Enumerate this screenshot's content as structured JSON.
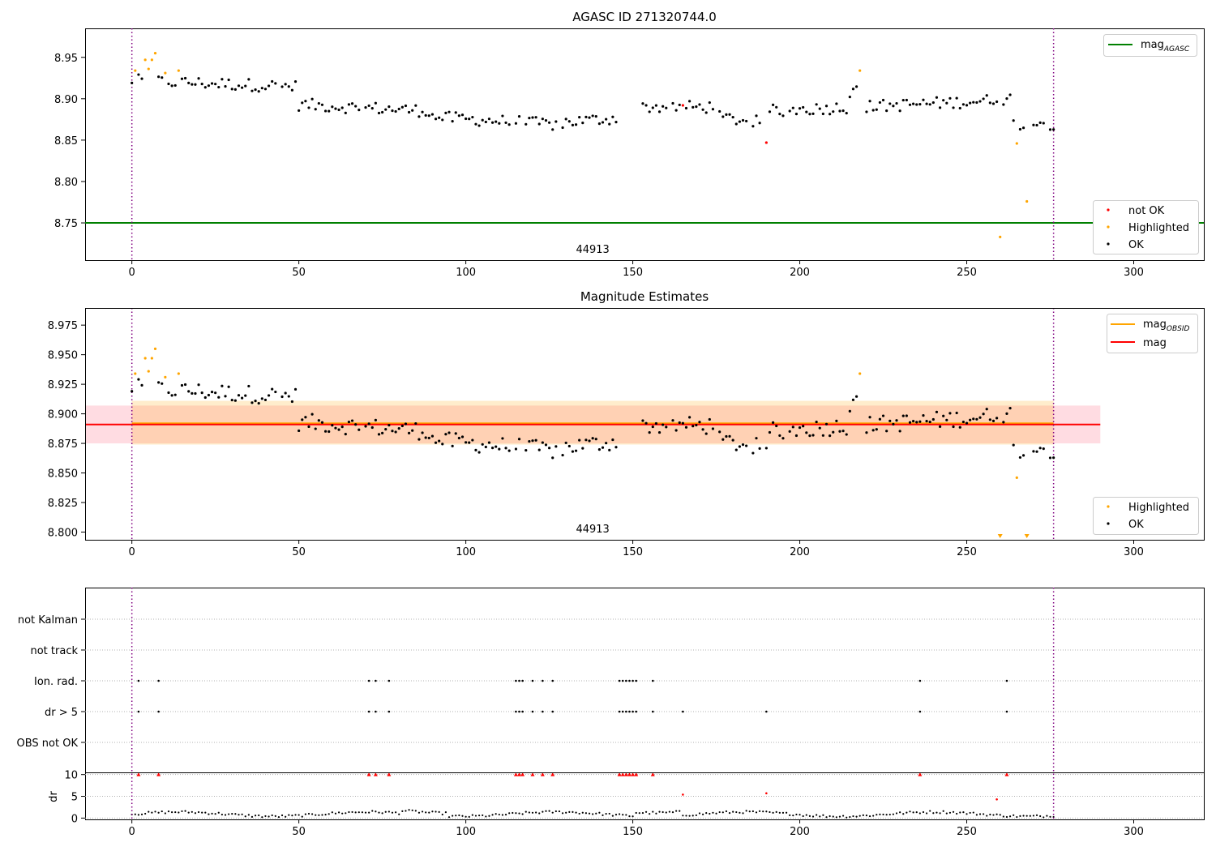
{
  "chart_data": [
    {
      "type": "scatter",
      "title": "AGASC ID 271320744.0",
      "xlim": [
        -14,
        321
      ],
      "ylim": [
        8.705,
        8.985
      ],
      "xticks": [
        0,
        50,
        100,
        150,
        200,
        250,
        300
      ],
      "yticks": [
        8.75,
        8.8,
        8.85,
        8.9,
        8.95
      ],
      "ytick_labels": [
        "8.75",
        "8.80",
        "8.85",
        "8.90",
        "8.95"
      ],
      "obsid_label": "44913",
      "obsid_x": 138,
      "vlines": [
        0,
        276
      ],
      "hline": {
        "name": "mag",
        "sub": "AGASC",
        "y": 8.75,
        "color": "#008000"
      },
      "series": [
        {
          "name": "not OK",
          "color": "#ff0000",
          "x": [
            165,
            190
          ],
          "y": [
            8.892,
            8.847
          ]
        },
        {
          "name": "Highlighted",
          "color": "#ffa500",
          "x": [
            1,
            4,
            5,
            6,
            7,
            10,
            14,
            218,
            260,
            265,
            268
          ],
          "y": [
            8.934,
            8.947,
            8.936,
            8.947,
            8.955,
            8.931,
            8.934,
            8.934,
            8.733,
            8.846,
            8.776
          ]
        },
        {
          "name": "OK",
          "color": "#000000",
          "base": 8.88
        }
      ],
      "legend_top": [
        "mag_AGASC"
      ],
      "legend_bottom": [
        "not OK",
        "Highlighted",
        "OK"
      ]
    },
    {
      "type": "scatter",
      "title": "Magnitude Estimates",
      "xlim": [
        -14,
        321
      ],
      "ylim": [
        8.7935,
        8.9895
      ],
      "xticks": [
        0,
        50,
        100,
        150,
        200,
        250,
        300
      ],
      "yticks": [
        8.8,
        8.825,
        8.85,
        8.875,
        8.9,
        8.925,
        8.95,
        8.975
      ],
      "ytick_labels": [
        "8.800",
        "8.825",
        "8.850",
        "8.875",
        "8.900",
        "8.925",
        "8.950",
        "8.975"
      ],
      "obsid_label": "44913",
      "obsid_x": 138,
      "vlines": [
        0,
        276
      ],
      "mag_line": {
        "name": "mag",
        "y": 8.891,
        "lo": 8.875,
        "hi": 8.907,
        "x": [
          -14,
          290
        ],
        "color": "#ff0000"
      },
      "mag_obsid": {
        "name": "mag",
        "sub": "OBSID",
        "x": [
          0,
          276
        ],
        "y": 8.892,
        "lo": 8.874,
        "hi": 8.911,
        "color": "#ffa500"
      },
      "series": [
        {
          "name": "Highlighted",
          "color": "#ffa500",
          "x": [
            1,
            4,
            5,
            6,
            7,
            10,
            14,
            218,
            265
          ],
          "y": [
            8.934,
            8.947,
            8.936,
            8.947,
            8.955,
            8.931,
            8.934,
            8.934,
            8.846
          ]
        },
        {
          "name": "OK",
          "color": "#000000"
        }
      ],
      "off_scale_x": [
        260,
        268
      ],
      "legend_top": [
        "mag_OBSID",
        "mag"
      ],
      "legend_bottom": [
        "Highlighted",
        "OK"
      ]
    },
    {
      "type": "scatter",
      "xlim": [
        -14,
        321
      ],
      "xticks": [
        0,
        50,
        100,
        150,
        200,
        250,
        300
      ],
      "flag_labels": [
        "not Kalman",
        "not track",
        "Ion. rad.",
        "dr > 5",
        "OBS not OK"
      ],
      "flags": {
        "Ion. rad.": [
          2,
          8,
          71,
          73,
          77,
          115,
          116,
          117,
          120,
          123,
          126,
          146,
          147,
          148,
          149,
          150,
          151,
          156,
          236,
          262
        ],
        "dr > 5": [
          2,
          8,
          71,
          73,
          77,
          115,
          116,
          117,
          120,
          123,
          126,
          146,
          147,
          148,
          149,
          150,
          151,
          156,
          165,
          190,
          236,
          262
        ]
      },
      "dr": {
        "ylabel": "dr",
        "ylim": [
          -0.3,
          10.5
        ],
        "yticks": [
          0,
          5,
          10
        ],
        "high_x": [
          2,
          8,
          71,
          73,
          77,
          115,
          116,
          117,
          120,
          123,
          126,
          146,
          147,
          148,
          149,
          150,
          151,
          156,
          236,
          262
        ],
        "high_y": 10,
        "mid_points": [
          [
            165,
            5.4
          ],
          [
            190,
            5.7
          ],
          [
            259,
            4.3
          ]
        ]
      },
      "vlines": [
        0,
        276
      ]
    }
  ]
}
